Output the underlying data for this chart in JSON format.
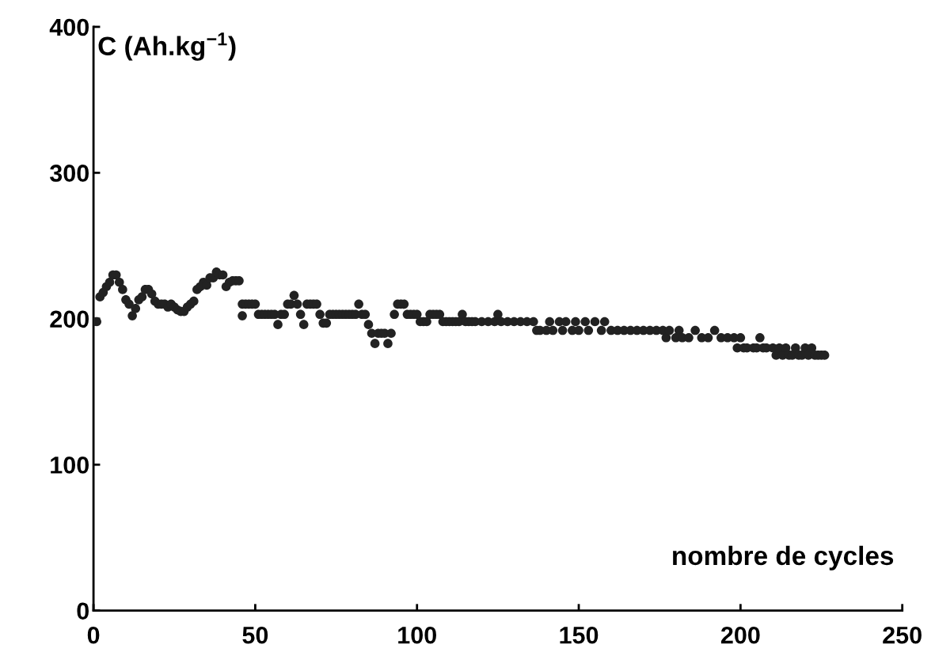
{
  "chart_data": {
    "type": "scatter",
    "ylabel": "C (Ah.kg$^{−1}$)",
    "xlabel": "nombre de cycles",
    "xlim": [
      0,
      250
    ],
    "ylim": [
      0,
      400
    ],
    "xticks": [
      0,
      50,
      100,
      150,
      200,
      250
    ],
    "yticks": [
      0,
      100,
      200,
      300,
      400
    ],
    "grid": false,
    "legend": false,
    "marker": "circle",
    "series": [
      {
        "color": "#222222",
        "x": [
          0,
          1,
          2,
          3,
          4,
          5,
          6,
          7,
          8,
          9,
          10,
          11,
          12,
          13,
          14,
          15,
          16,
          17,
          18,
          19,
          20,
          21,
          22,
          23,
          24,
          25,
          26,
          27,
          28,
          29,
          30,
          31,
          32,
          33,
          34,
          35,
          36,
          37,
          38,
          39,
          40,
          41,
          42,
          43,
          44,
          45,
          46,
          46,
          47,
          48,
          49,
          50,
          51,
          52,
          53,
          54,
          55,
          56,
          57,
          58,
          59,
          60,
          61,
          62,
          63,
          64,
          65,
          66,
          67,
          68,
          69,
          70,
          71,
          72,
          73,
          74,
          75,
          76,
          77,
          78,
          79,
          80,
          81,
          82,
          83,
          84,
          85,
          86,
          87,
          88,
          89,
          90,
          91,
          92,
          93,
          94,
          95,
          96,
          97,
          98,
          99,
          100,
          101,
          102,
          103,
          104,
          105,
          106,
          107,
          108,
          109,
          110,
          111,
          112,
          113,
          114,
          115,
          116,
          117,
          118,
          120,
          122,
          124,
          125,
          126,
          128,
          130,
          132,
          134,
          136,
          137,
          138,
          140,
          141,
          142,
          144,
          145,
          146,
          148,
          149,
          150,
          152,
          153,
          155,
          157,
          158,
          160,
          162,
          164,
          166,
          168,
          170,
          172,
          174,
          176,
          177,
          178,
          180,
          181,
          182,
          184,
          186,
          188,
          190,
          192,
          194,
          196,
          198,
          199,
          200,
          201,
          202,
          204,
          205,
          206,
          207,
          208,
          210,
          211,
          212,
          213,
          214,
          215,
          216,
          217,
          218,
          219,
          220,
          221,
          222,
          223,
          224,
          225,
          226
        ],
        "values": [
          198,
          198,
          215,
          218,
          222,
          225,
          230,
          230,
          225,
          220,
          213,
          210,
          202,
          207,
          213,
          215,
          220,
          220,
          217,
          212,
          210,
          210,
          210,
          208,
          210,
          208,
          206,
          205,
          205,
          208,
          210,
          212,
          220,
          222,
          225,
          223,
          228,
          228,
          232,
          230,
          230,
          222,
          225,
          226,
          226,
          226,
          202,
          210,
          210,
          210,
          210,
          210,
          203,
          203,
          203,
          203,
          203,
          203,
          196,
          203,
          203,
          210,
          210,
          216,
          210,
          203,
          196,
          210,
          210,
          210,
          210,
          203,
          197,
          197,
          203,
          203,
          203,
          203,
          203,
          203,
          203,
          203,
          203,
          210,
          203,
          203,
          196,
          190,
          183,
          190,
          190,
          190,
          183,
          190,
          203,
          210,
          210,
          210,
          203,
          203,
          203,
          203,
          198,
          198,
          198,
          203,
          203,
          203,
          203,
          198,
          198,
          198,
          198,
          198,
          198,
          203,
          198,
          198,
          198,
          198,
          198,
          198,
          198,
          203,
          198,
          198,
          198,
          198,
          198,
          198,
          192,
          192,
          192,
          198,
          192,
          198,
          192,
          198,
          192,
          198,
          192,
          198,
          192,
          198,
          192,
          198,
          192,
          192,
          192,
          192,
          192,
          192,
          192,
          192,
          192,
          187,
          192,
          187,
          192,
          187,
          187,
          192,
          187,
          187,
          192,
          187,
          187,
          187,
          180,
          187,
          180,
          180,
          180,
          180,
          187,
          180,
          180,
          180,
          175,
          180,
          175,
          180,
          175,
          175,
          180,
          175,
          175,
          180,
          175,
          180,
          175,
          175,
          175,
          175
        ]
      }
    ]
  }
}
